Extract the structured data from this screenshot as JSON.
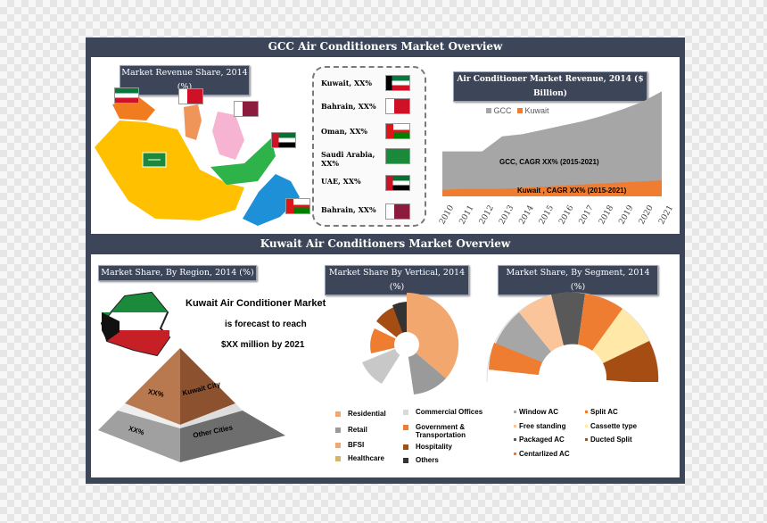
{
  "top": {
    "title": "GCC Air Conditioners Market Overview",
    "map_label": "Market Revenue Share, 2014 (%)",
    "legend": [
      {
        "label": "Kuwait, XX%"
      },
      {
        "label": "Bahrain, XX%"
      },
      {
        "label": "Oman, XX%"
      },
      {
        "label": "Saudi Arabia, XX%"
      },
      {
        "label": "UAE, XX%"
      },
      {
        "label": "Bahrain, XX%"
      }
    ],
    "chart_title": "Air Conditioner  Market Revenue, 2014 ($ Billion)",
    "gcc_note": "GCC, CAGR XX% (2015-2021)",
    "kuwait_note": "Kuwait , CAGR XX% (2015-2021)"
  },
  "bottom": {
    "title": "Kuwait Air Conditioners Market Overview",
    "region_label": "Market Share, By Region, 2014 (%)",
    "vertical_label": "Market Share By Vertical, 2014 (%)",
    "segment_label": "Market Share, By Segment, 2014 (%)",
    "forecast_line1": "Kuwait Air Conditioner Market",
    "forecast_line2": "is forecast to reach",
    "forecast_line3": "$XX million by 2021",
    "pyramid_top_value": "XX%",
    "pyramid_top_label": "Kuwait City",
    "pyramid_bottom_value": "XX%",
    "pyramid_bottom_label": "Other Cities",
    "vertical_legend": [
      "Residential",
      "Commercial Offices",
      "Retail",
      "Government & Transportation",
      "BFSI",
      "Hospitality",
      "Healthcare",
      "Others"
    ],
    "segment_legend": [
      "Window AC",
      "Split AC",
      "Free standing",
      "Cassette type",
      "Packaged AC",
      "Ducted Split",
      "Centarlized AC"
    ]
  },
  "chart_data": {
    "type": "area",
    "title": "Air Conditioner  Market Revenue, 2014 ($ Billion)",
    "x": [
      "2010",
      "2011",
      "2012",
      "2013",
      "2014",
      "2015",
      "2016",
      "2017",
      "2018",
      "2019",
      "2020",
      "2021"
    ],
    "series": [
      {
        "name": "GCC",
        "color": "#a6a6a6",
        "values": [
          0.42,
          0.42,
          0.42,
          0.56,
          0.58,
          0.62,
          0.66,
          0.7,
          0.75,
          0.81,
          0.88,
          0.98
        ]
      },
      {
        "name": "Kuwait",
        "color": "#ee7d31",
        "values": [
          0.06,
          0.07,
          0.07,
          0.07,
          0.08,
          0.09,
          0.1,
          0.11,
          0.12,
          0.13,
          0.14,
          0.15
        ]
      }
    ],
    "grid": false,
    "legend_position": "top-left"
  },
  "colors": {
    "frame": "#3d4658",
    "orange": "#ee7d31",
    "gray": "#a6a6a6"
  }
}
